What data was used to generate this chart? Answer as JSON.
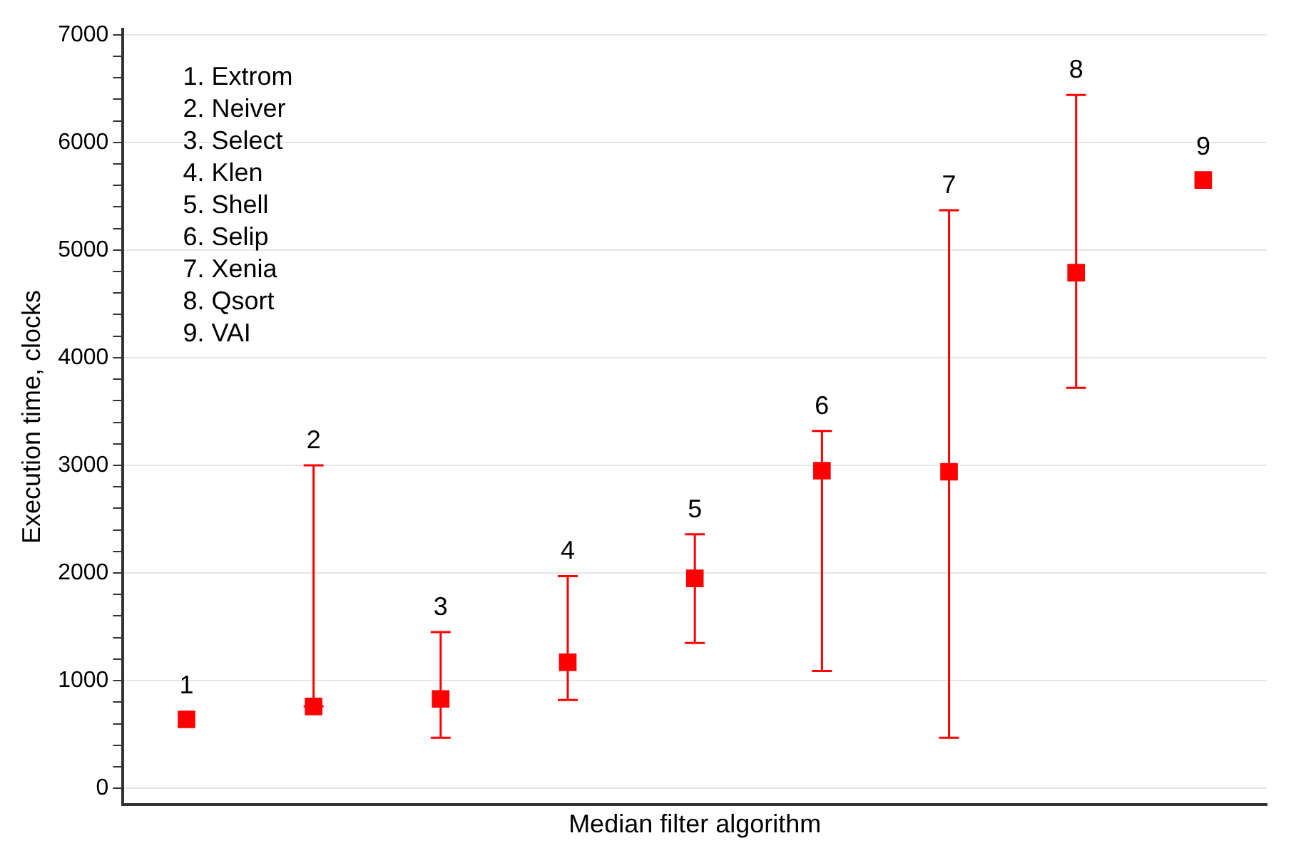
{
  "chart_data": {
    "type": "scatter",
    "xlabel": "Median filter algorithm",
    "ylabel": "Execution time, clocks",
    "categories": [
      "1",
      "2",
      "3",
      "4",
      "5",
      "6",
      "7",
      "8",
      "9"
    ],
    "values": [
      640,
      760,
      830,
      1170,
      1950,
      2950,
      2940,
      4790,
      5650
    ],
    "errors": [
      null,
      [
        760,
        3000
      ],
      [
        470,
        1450
      ],
      [
        820,
        1970
      ],
      [
        1350,
        2360
      ],
      [
        1090,
        3320
      ],
      [
        470,
        5370
      ],
      [
        3720,
        6440
      ],
      null
    ],
    "color": "#ff0000",
    "marker": "square",
    "grid": "y",
    "legend": false,
    "ylim": [
      -150,
      7050
    ],
    "yticks": [
      0,
      {
        "value": 200,
        "label": null
      },
      {
        "value": 400,
        "label": null
      },
      {
        "value": 600,
        "label": null
      },
      {
        "value": 800,
        "label": null
      },
      1000,
      {
        "value": 1200,
        "label": null
      },
      {
        "value": 1400,
        "label": null
      },
      {
        "value": 1600,
        "label": null
      },
      {
        "value": 1800,
        "label": null
      },
      2000,
      {
        "value": 2200,
        "label": null
      },
      {
        "value": 2400,
        "label": null
      },
      {
        "value": 2600,
        "label": null
      },
      {
        "value": 2800,
        "label": null
      },
      3000,
      {
        "value": 3200,
        "label": null
      },
      {
        "value": 3400,
        "label": null
      },
      {
        "value": 3600,
        "label": null
      },
      {
        "value": 3800,
        "label": null
      },
      4000,
      {
        "value": 4200,
        "label": null
      },
      {
        "value": 4400,
        "label": null
      },
      {
        "value": 4600,
        "label": null
      },
      {
        "value": 4800,
        "label": null
      },
      5000,
      {
        "value": 5200,
        "label": null
      },
      {
        "value": 5400,
        "label": null
      },
      {
        "value": 5600,
        "label": null
      },
      {
        "value": 5800,
        "label": null
      },
      6000,
      {
        "value": 6200,
        "label": null
      },
      {
        "value": 6400,
        "label": null
      },
      {
        "value": 6600,
        "label": null
      },
      {
        "value": 6800,
        "label": null
      },
      7000
    ],
    "annotations": [
      "1. Extrom",
      "2. Neiver",
      "3. Select",
      "4. Klen",
      "5. Shell",
      "6. Selip",
      "7. Xenia",
      "8. Qsort",
      "9. VAI"
    ]
  }
}
